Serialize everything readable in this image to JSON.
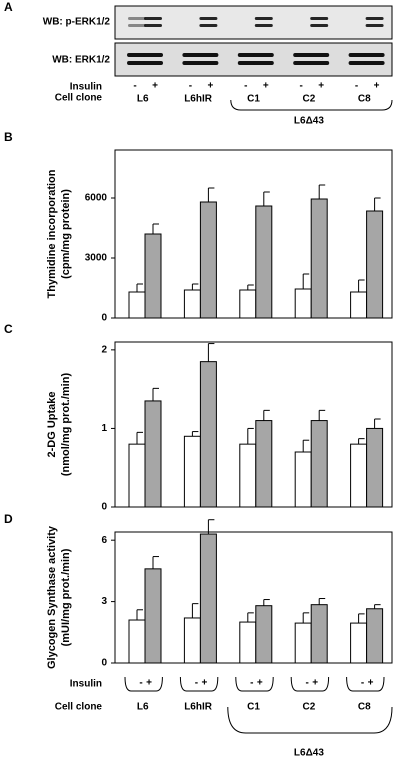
{
  "panel_a": {
    "label": "A",
    "pERK": "WB: p-ERK1/2",
    "ERK": "WB:  ERK1/2",
    "insulin": "Insulin",
    "minus": "-",
    "plus": "+",
    "cell_clone": "Cell clone",
    "clones": [
      "L6",
      "L6hIR",
      "C1",
      "C2",
      "C8"
    ],
    "group": "L6Δ43"
  },
  "chart_data": [
    {
      "type": "bar",
      "panel": "B",
      "ylabel": [
        "Thymidine incorporation",
        "(cpm/mg protein)"
      ],
      "categories": [
        null,
        null,
        null,
        null,
        null
      ],
      "series": [
        {
          "color": "#ffffff",
          "values": [
            1300,
            1400,
            1400,
            1450,
            1300
          ],
          "errors": [
            400,
            300,
            250,
            750,
            600
          ]
        },
        {
          "color": "#a6a6a6",
          "values": [
            4200,
            5800,
            5600,
            5950,
            5350
          ],
          "errors": [
            500,
            700,
            700,
            700,
            650
          ]
        }
      ],
      "ylim": [
        0,
        8400
      ],
      "yticks": [
        0,
        3000,
        6000
      ]
    },
    {
      "type": "bar",
      "panel": "C",
      "ylabel": [
        "2-DG Uptake",
        "(nmol/mg prot./min)"
      ],
      "categories": [
        null,
        null,
        null,
        null,
        null
      ],
      "series": [
        {
          "color": "#ffffff",
          "values": [
            0.8,
            0.9,
            0.8,
            0.7,
            0.8
          ],
          "errors": [
            0.15,
            0.06,
            0.2,
            0.15,
            0.07
          ]
        },
        {
          "color": "#a6a6a6",
          "values": [
            1.35,
            1.85,
            1.1,
            1.1,
            1.0
          ],
          "errors": [
            0.16,
            0.23,
            0.13,
            0.13,
            0.12
          ]
        }
      ],
      "ylim": [
        0,
        2.1
      ],
      "yticks": [
        0,
        1,
        2
      ]
    },
    {
      "type": "bar",
      "panel": "D",
      "ylabel": [
        "Glycogen Synthase activity",
        "(mUI/mg prot./min)"
      ],
      "categories": [
        "L6",
        "L6hIR",
        "C1",
        "C2",
        "C8"
      ],
      "x_row_labels": [
        "Insulin",
        "Cell clone"
      ],
      "group_label": "L6Δ43",
      "series": [
        {
          "name": "-",
          "color": "#ffffff",
          "values": [
            2.1,
            2.2,
            2.0,
            1.95,
            1.95
          ],
          "errors": [
            0.5,
            0.7,
            0.45,
            0.5,
            0.45
          ]
        },
        {
          "name": "+",
          "color": "#a6a6a6",
          "values": [
            4.6,
            6.3,
            2.8,
            2.85,
            2.65
          ],
          "errors": [
            0.6,
            0.7,
            0.3,
            0.3,
            0.2
          ]
        }
      ],
      "ylim": [
        0,
        6.4
      ],
      "yticks": [
        0,
        3,
        6
      ]
    }
  ]
}
